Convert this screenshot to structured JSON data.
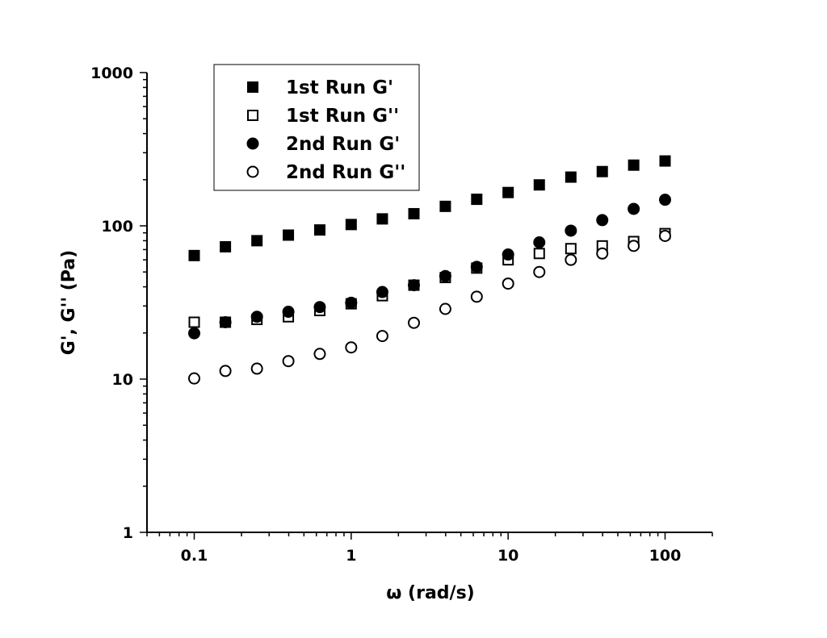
{
  "chart_data": {
    "type": "scatter",
    "title": "",
    "xlabel": "ω (rad/s)",
    "ylabel": "G', G'' (Pa)",
    "xscale": "log",
    "yscale": "log",
    "xlim": [
      0.05,
      200
    ],
    "ylim": [
      1,
      1000
    ],
    "x_ticks": [
      0.1,
      1,
      10,
      100
    ],
    "x_tick_labels": [
      "0.1",
      "1",
      "10",
      "100"
    ],
    "y_ticks": [
      1,
      10,
      100,
      1000
    ],
    "y_tick_labels": [
      "1",
      "10",
      "100",
      "1000"
    ],
    "grid": false,
    "legend_position": "top-left",
    "x": [
      0.1,
      0.158,
      0.251,
      0.398,
      0.631,
      1,
      1.58,
      2.51,
      3.98,
      6.31,
      10,
      15.8,
      25.1,
      39.8,
      63.1,
      100
    ],
    "series": [
      {
        "name": "1st Run G'",
        "marker": "filled-square",
        "values": [
          64,
          73,
          80,
          87,
          94,
          102,
          111,
          120,
          134,
          149,
          165,
          185,
          208,
          226,
          249,
          265
        ]
      },
      {
        "name": "1st Run G''",
        "marker": "open-square",
        "values": [
          23.5,
          23.5,
          24.5,
          25.5,
          28,
          31,
          35,
          41,
          46,
          53,
          60,
          66,
          71,
          74,
          79,
          89
        ]
      },
      {
        "name": "2nd Run G'",
        "marker": "filled-circle",
        "values": [
          19.9,
          23.5,
          25.5,
          27.5,
          29.5,
          31.5,
          37,
          41,
          47,
          54,
          65,
          78,
          93,
          109,
          129,
          148
        ]
      },
      {
        "name": "2nd Run G''",
        "marker": "open-circle",
        "values": [
          10.1,
          11.3,
          11.7,
          13.1,
          14.6,
          16.1,
          19.1,
          23.3,
          28.7,
          34.5,
          42,
          50,
          60,
          66,
          74,
          86
        ]
      }
    ]
  }
}
